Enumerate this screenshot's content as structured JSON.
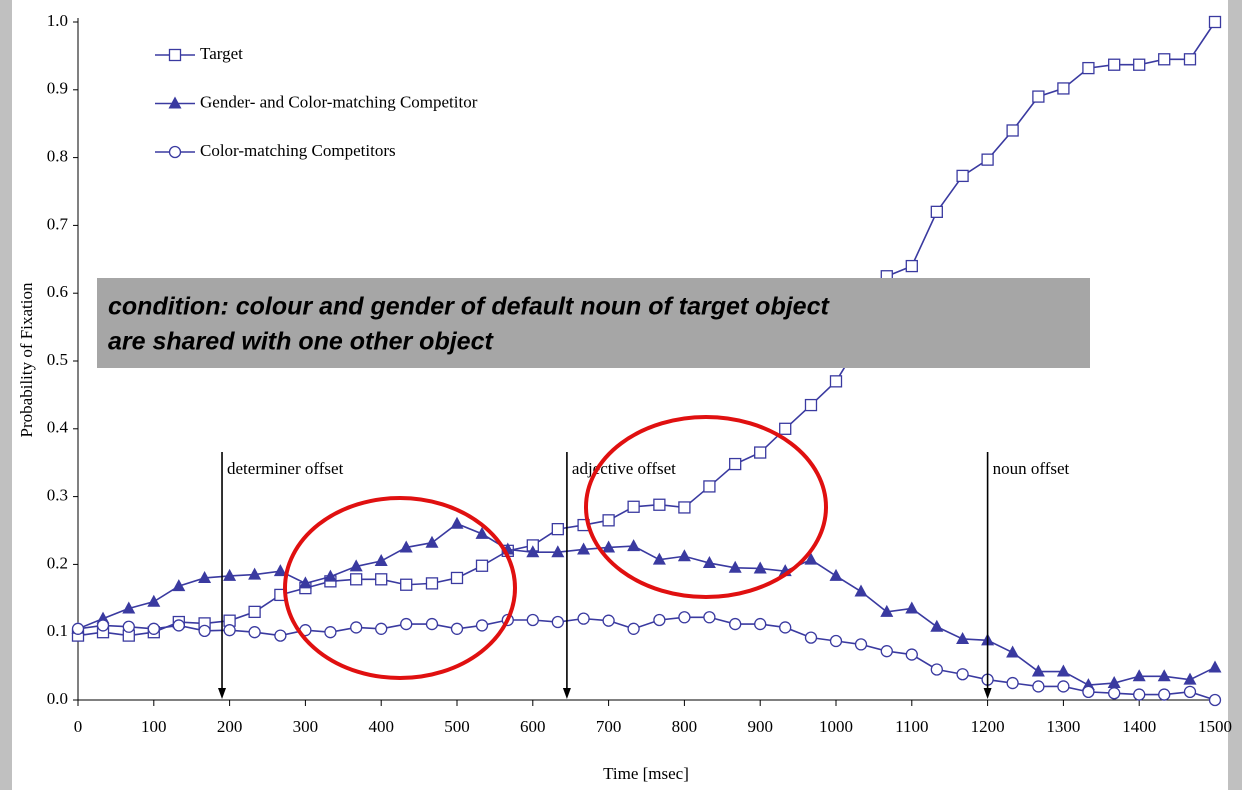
{
  "chart_data": {
    "type": "line",
    "xlabel": "Time [msec]",
    "ylabel": "Probability of Fixation",
    "x": [
      0,
      33,
      67,
      100,
      133,
      167,
      200,
      233,
      267,
      300,
      333,
      367,
      400,
      433,
      467,
      500,
      533,
      567,
      600,
      633,
      667,
      700,
      733,
      767,
      800,
      833,
      867,
      900,
      933,
      967,
      1000,
      1033,
      1067,
      1100,
      1133,
      1167,
      1200,
      1233,
      1267,
      1300,
      1333,
      1367,
      1400,
      1433,
      1467,
      1500
    ],
    "series": [
      {
        "name": "Target",
        "marker": "square",
        "color": "#3a3aa0",
        "values": [
          0.095,
          0.1,
          0.095,
          0.1,
          0.115,
          0.113,
          0.117,
          0.13,
          0.155,
          0.165,
          0.175,
          0.178,
          0.178,
          0.17,
          0.172,
          0.18,
          0.198,
          0.22,
          0.228,
          0.252,
          0.258,
          0.265,
          0.285,
          0.288,
          0.284,
          0.315,
          0.348,
          0.365,
          0.4,
          0.435,
          0.47,
          0.53,
          0.625,
          0.64,
          0.72,
          0.773,
          0.797,
          0.84,
          0.89,
          0.902,
          0.932,
          0.937,
          0.937,
          0.945,
          0.945,
          1.0
        ]
      },
      {
        "name": "Gender- and Color-matching Competitor",
        "marker": "triangle",
        "color": "#3a3aa0",
        "values": [
          0.105,
          0.12,
          0.135,
          0.145,
          0.168,
          0.18,
          0.183,
          0.185,
          0.19,
          0.172,
          0.182,
          0.197,
          0.205,
          0.225,
          0.232,
          0.26,
          0.245,
          0.222,
          0.218,
          0.218,
          0.222,
          0.225,
          0.227,
          0.207,
          0.212,
          0.202,
          0.195,
          0.194,
          0.19,
          0.207,
          0.183,
          0.16,
          0.13,
          0.135,
          0.108,
          0.09,
          0.088,
          0.07,
          0.042,
          0.042,
          0.022,
          0.025,
          0.035,
          0.035,
          0.03,
          0.048
        ]
      },
      {
        "name": "Color-matching Competitors",
        "marker": "circle",
        "color": "#3a3aa0",
        "values": [
          0.105,
          0.11,
          0.108,
          0.105,
          0.11,
          0.102,
          0.103,
          0.1,
          0.095,
          0.103,
          0.1,
          0.107,
          0.105,
          0.112,
          0.112,
          0.105,
          0.11,
          0.118,
          0.118,
          0.115,
          0.12,
          0.117,
          0.105,
          0.118,
          0.122,
          0.122,
          0.112,
          0.112,
          0.107,
          0.092,
          0.087,
          0.082,
          0.072,
          0.067,
          0.045,
          0.038,
          0.03,
          0.025,
          0.02,
          0.02,
          0.012,
          0.01,
          0.008,
          0.008,
          0.012,
          0.0
        ]
      }
    ],
    "xlim": [
      0,
      1500
    ],
    "xticks": [
      0,
      100,
      200,
      300,
      400,
      500,
      600,
      700,
      800,
      900,
      1000,
      1100,
      1200,
      1300,
      1400,
      1500
    ],
    "ylim": [
      0,
      1
    ],
    "yticks": [
      {
        "value": 0,
        "label": "0.0"
      },
      0.1,
      0.2,
      0.3,
      0.4,
      0.5,
      0.6,
      0.7,
      0.8,
      0.9,
      {
        "value": 1,
        "label": "1.0"
      }
    ],
    "grid": false,
    "legend": "upper left",
    "annotations": [
      {
        "text": "determiner offset",
        "x": 190
      },
      {
        "text": "adjective offset",
        "x": 645
      },
      {
        "text": "noun offset",
        "x": 1200
      }
    ],
    "note": [
      "condition: colour and gender of default noun of target object",
      "are shared with one other object"
    ]
  }
}
